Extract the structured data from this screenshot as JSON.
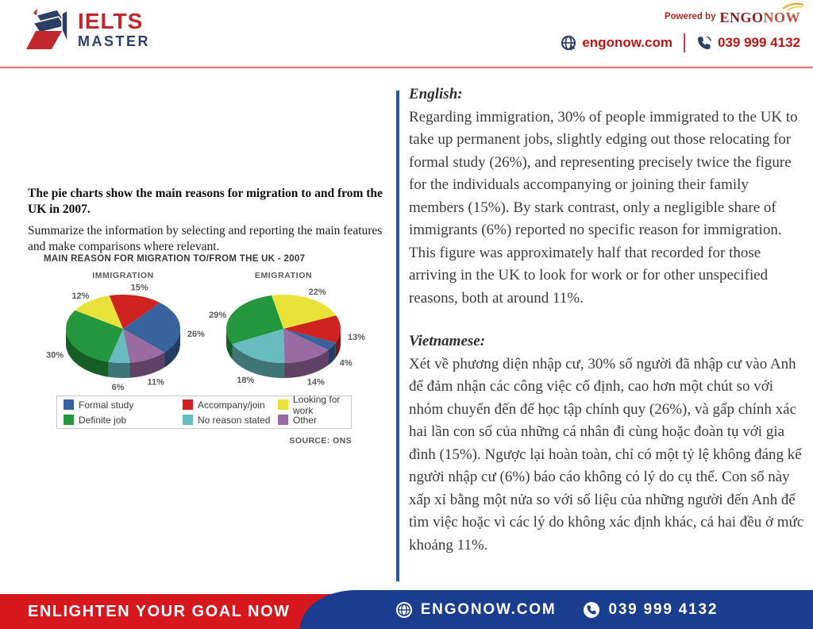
{
  "header": {
    "logo_line1": "IELTS",
    "logo_line2": "MASTER",
    "powered_by": "Powered by",
    "brand_part1": "ENGO",
    "brand_part2": "NOW",
    "website": "engonow.com",
    "phone": "039 999 4132"
  },
  "task": {
    "prompt": "The pie charts show the main reasons for migration to and from the UK in 2007.",
    "instruction": "Summarize the information by selecting and reporting the main features and make comparisons where relevant."
  },
  "chart_data": {
    "type": "pie",
    "title": "MAIN REASON FOR MIGRATION TO/FROM THE UK - 2007",
    "source": "SOURCE: ONS",
    "legend_position": "bottom",
    "legend_order": [
      "Formal study",
      "Accompany/join",
      "Looking for work",
      "Definite job",
      "No reason stated",
      "Other"
    ],
    "colors": {
      "Formal study": "#38639e",
      "Accompany/join": "#d02220",
      "Looking for work": "#e9e23a",
      "Definite job": "#23963e",
      "No reason stated": "#68bcc0",
      "Other": "#9a6ba3"
    },
    "charts": [
      {
        "name": "IMMIGRATION",
        "start_angle_deg": -14,
        "slices": [
          {
            "category": "Accompany/join",
            "value": 15
          },
          {
            "category": "Formal study",
            "value": 26
          },
          {
            "category": "Other",
            "value": 11
          },
          {
            "category": "No reason stated",
            "value": 6
          },
          {
            "category": "Definite job",
            "value": 30
          },
          {
            "category": "Looking for work",
            "value": 12
          }
        ]
      },
      {
        "name": "EMIGRATION",
        "start_angle_deg": -12,
        "slices": [
          {
            "category": "Looking for work",
            "value": 22
          },
          {
            "category": "Accompany/join",
            "value": 13
          },
          {
            "category": "Formal study",
            "value": 4
          },
          {
            "category": "Other",
            "value": 14
          },
          {
            "category": "No reason stated",
            "value": 18
          },
          {
            "category": "Definite job",
            "value": 29
          }
        ]
      }
    ]
  },
  "translation": {
    "english_label": "English:",
    "english_text": "Regarding immigration, 30% of people immigrated to the UK to take up permanent jobs, slightly edging out those relocating for formal study (26%), and representing precisely twice the figure for the individuals accompanying or joining their family members (15%). By stark contrast, only a negligible share of immigrants (6%) reported no specific reason for immigration. This figure was approximately half that recorded for those arriving in the UK to look for work or for other unspecified reasons, both at around 11%.",
    "vietnamese_label": "Vietnamese:",
    "vietnamese_text": "Xét về phương diện nhập cư, 30% số người đã nhập cư vào Anh để đảm nhận các công việc cố định, cao hơn một chút so với nhóm chuyển đến để học tập chính quy (26%), và gấp chính xác hai lần con số của những cá nhân đi cùng hoặc đoàn tụ với gia đình (15%). Ngược lại hoàn toàn, chỉ có một tỷ lệ không đáng kể người nhập cư (6%) báo cáo không có lý do cụ thể. Con số này xấp xỉ bằng một nửa so với số liệu của những người đến Anh để tìm việc hoặc vì các lý do không xác định khác, cả hai đều ở mức khoảng 11%."
  },
  "footer": {
    "slogan": "ENLIGHTEN YOUR GOAL NOW",
    "website": "ENGONOW.COM",
    "phone": "039 999 4132"
  },
  "icons": {
    "logo": "book-logo-icon",
    "brand_swoosh": "swoosh-icon",
    "website": "globe-icon",
    "phone": "phone-icon"
  },
  "theme": {
    "brand_red": "#c1272d",
    "brand_navy": "#2e3f66",
    "link_red": "#c21414",
    "header_rule_red": "#e57070",
    "accent_bar_blue": "#2257a5",
    "footer_red": "#d6171e",
    "footer_blue": "#1b3d8f"
  }
}
